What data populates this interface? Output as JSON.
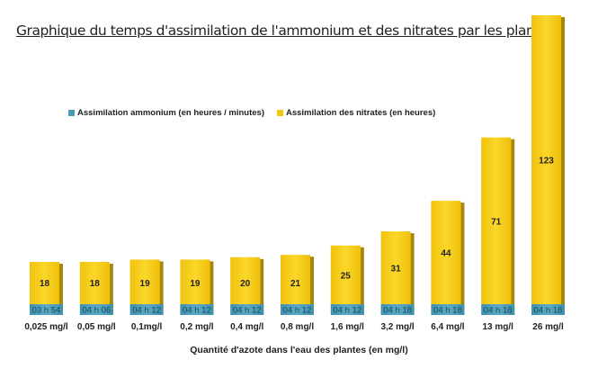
{
  "chart_data": {
    "type": "bar",
    "stacked": true,
    "title": "Graphique du temps d'assimilation de l'ammonium et des nitrates par les plantes",
    "xlabel": "Quantité d'azote dans l'eau des plantes (en mg/l)",
    "ylabel": "",
    "legend_position": "top-center",
    "grid": false,
    "categories": [
      "0,025 mg/l",
      "0,05 mg/l",
      "0,1mg/l",
      "0,2 mg/l",
      "0,4 mg/l",
      "0,8 mg/l",
      "1,6 mg/l",
      "3,2 mg/l",
      "6,4 mg/l",
      "13 mg/l",
      "26 mg/l"
    ],
    "series": [
      {
        "name": "Assimilation ammonium (en heures / minutes)",
        "color": "#4a9bb8",
        "labels": [
          "03 h 54",
          "04 h 06",
          "04 h 12",
          "04 h 12",
          "04 h 12",
          "04 h 12",
          "04 h 12",
          "04 h 18",
          "04 h 18",
          "04 h 18",
          "04 h 18"
        ],
        "values": [
          3.9,
          4.1,
          4.2,
          4.2,
          4.2,
          4.2,
          4.2,
          4.3,
          4.3,
          4.3,
          4.3
        ]
      },
      {
        "name": "Assimilation des nitrates (en heures)",
        "color": "#f2c811",
        "labels": [
          "18",
          "18",
          "19",
          "19",
          "20",
          "21",
          "25",
          "31",
          "44",
          "71",
          "123"
        ],
        "values": [
          18,
          18,
          19,
          19,
          20,
          21,
          25,
          31,
          44,
          71,
          123
        ]
      }
    ]
  }
}
